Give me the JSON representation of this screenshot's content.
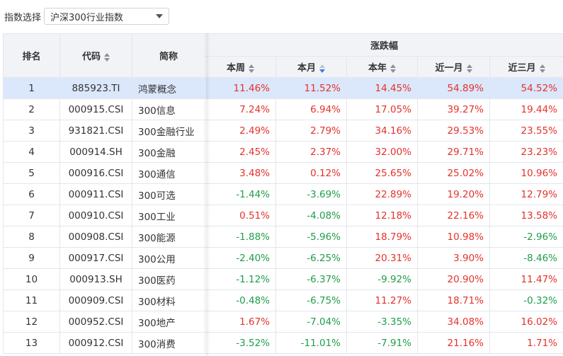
{
  "filter": {
    "label": "指数选择",
    "selected": "沪深300行业指数"
  },
  "table": {
    "headers": {
      "rank": "排名",
      "code": "代码",
      "name": "简称",
      "group": "涨跌幅",
      "week": "本周",
      "month": "本月",
      "year": "本年",
      "m1": "近一月",
      "m3": "近三月"
    },
    "rows": [
      {
        "rank": "1",
        "code": "885923.TI",
        "name": "鸿蒙概念",
        "week": "11.46%",
        "month": "11.52%",
        "year": "14.45%",
        "m1": "54.89%",
        "m3": "54.52%"
      },
      {
        "rank": "2",
        "code": "000915.CSI",
        "name": "300信息",
        "week": "7.24%",
        "month": "6.94%",
        "year": "17.05%",
        "m1": "39.27%",
        "m3": "19.44%"
      },
      {
        "rank": "3",
        "code": "931821.CSI",
        "name": "300金融行业",
        "week": "2.49%",
        "month": "2.79%",
        "year": "34.16%",
        "m1": "29.53%",
        "m3": "23.55%"
      },
      {
        "rank": "4",
        "code": "000914.SH",
        "name": "300金融",
        "week": "2.45%",
        "month": "2.37%",
        "year": "32.00%",
        "m1": "29.71%",
        "m3": "23.23%"
      },
      {
        "rank": "5",
        "code": "000916.CSI",
        "name": "300通信",
        "week": "3.48%",
        "month": "0.12%",
        "year": "25.65%",
        "m1": "25.02%",
        "m3": "10.96%"
      },
      {
        "rank": "6",
        "code": "000911.CSI",
        "name": "300可选",
        "week": "-1.44%",
        "month": "-3.69%",
        "year": "22.89%",
        "m1": "19.20%",
        "m3": "12.79%"
      },
      {
        "rank": "7",
        "code": "000910.CSI",
        "name": "300工业",
        "week": "0.51%",
        "month": "-4.08%",
        "year": "12.18%",
        "m1": "22.16%",
        "m3": "13.58%"
      },
      {
        "rank": "8",
        "code": "000908.CSI",
        "name": "300能源",
        "week": "-1.88%",
        "month": "-5.96%",
        "year": "18.79%",
        "m1": "10.98%",
        "m3": "-2.96%"
      },
      {
        "rank": "9",
        "code": "000917.CSI",
        "name": "300公用",
        "week": "-2.40%",
        "month": "-6.25%",
        "year": "20.31%",
        "m1": "3.90%",
        "m3": "-8.46%"
      },
      {
        "rank": "10",
        "code": "000913.SH",
        "name": "300医药",
        "week": "-1.12%",
        "month": "-6.37%",
        "year": "-9.92%",
        "m1": "20.90%",
        "m3": "11.47%"
      },
      {
        "rank": "11",
        "code": "000909.CSI",
        "name": "300材料",
        "week": "-0.48%",
        "month": "-6.75%",
        "year": "11.27%",
        "m1": "18.71%",
        "m3": "-0.32%"
      },
      {
        "rank": "12",
        "code": "000952.CSI",
        "name": "300地产",
        "week": "1.67%",
        "month": "-7.04%",
        "year": "-3.35%",
        "m1": "34.08%",
        "m3": "16.02%"
      },
      {
        "rank": "13",
        "code": "000912.CSI",
        "name": "300消费",
        "week": "-3.52%",
        "month": "-11.01%",
        "year": "-7.91%",
        "m1": "21.16%",
        "m3": "1.71%"
      }
    ]
  },
  "colors": {
    "up": "#e4322b",
    "down": "#1f9e4a",
    "selected_row": "#dbe7fb",
    "header_bg": "#f1f3f7"
  }
}
